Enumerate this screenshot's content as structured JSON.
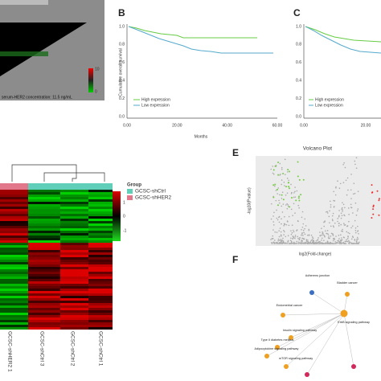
{
  "panels": {
    "A": {
      "colorbar_ticks": [
        "10",
        "0"
      ],
      "caption": "serum-HER2 concentration: 11.5 ng/mL"
    },
    "B": {
      "label": "B",
      "y_label": "Cumulative overall survival",
      "x_label": "Months",
      "yticks": [
        "0.0",
        "0.2",
        "0.4",
        "0.6",
        "0.8",
        "1.0"
      ],
      "xticks": [
        "0.00",
        "20.00",
        "40.00",
        "60.00"
      ],
      "legend": [
        "High expression",
        "Low expression"
      ]
    },
    "C": {
      "label": "C",
      "yticks": [
        "0.0",
        "0.2",
        "0.4",
        "0.6",
        "0.8",
        "1.0"
      ],
      "xticks": [
        "0.00",
        "20.00"
      ],
      "legend": [
        "High expression",
        "Low expression"
      ]
    },
    "D": {
      "group_title": "Group",
      "groups": [
        "GCSC-shCtrl",
        "GCSC-shHER2"
      ],
      "colorbar_ticks": [
        "1",
        "0",
        "-1"
      ],
      "columns": [
        "GCSC-shHER2 1",
        "GCSC-shCtrl 3",
        "GCSC-shCtrl 2",
        "GCSC-shCtrl 1"
      ]
    },
    "E": {
      "label": "E",
      "title": "Volcano Plot",
      "x_label": "log2(Fold-change)",
      "y_label": "-log10(P.value)"
    },
    "F": {
      "label": "F",
      "nodes": [
        "Adherens junction",
        "Bladder cancer",
        "Endometrial cancer",
        "ErbB signaling pathway",
        "Insulin signaling pathway",
        "Type II diabetes mellitus",
        "Adipocytokine signaling pathway",
        "mTOR signaling pathway"
      ]
    }
  }
}
